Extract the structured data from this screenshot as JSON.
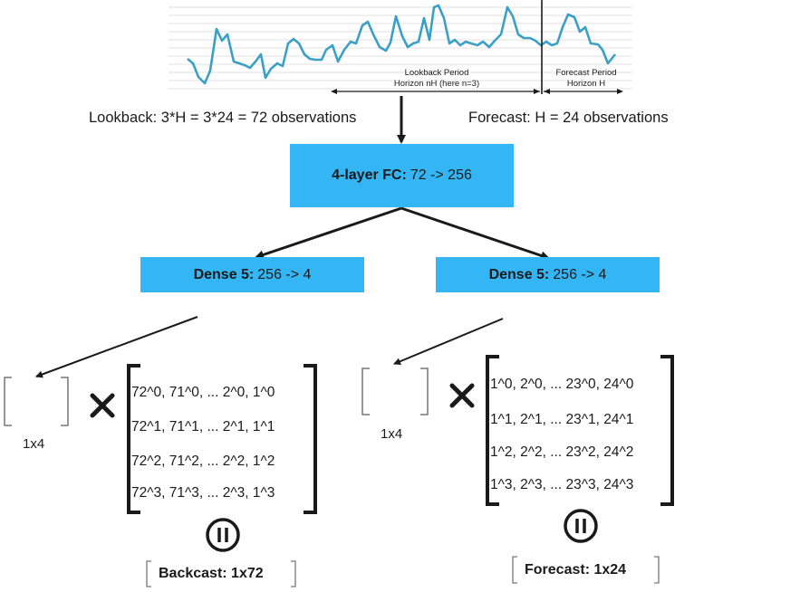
{
  "plot": {
    "lookback_line1": "Lookback Period",
    "lookback_line2": "Horizon nH (here n=3)",
    "forecast_line1": "Forecast Period",
    "forecast_line2": "Horizon H"
  },
  "labels": {
    "lookback": "Lookback: 3*H = 3*24 = 72 observations",
    "forecast": "Forecast: H = 24 observations"
  },
  "fc_block": {
    "title": "4-layer FC:",
    "dims": "72 -> 256"
  },
  "dense_left": {
    "title": "Dense 5:",
    "dims": "256 -> 4"
  },
  "dense_right": {
    "title": "Dense 5:",
    "dims": "256 -> 4"
  },
  "left": {
    "vector_label": "1x4",
    "matrix_rows": [
      "72^0,  71^0, ... 2^0, 1^0",
      "72^1,  71^1, ... 2^1, 1^1",
      "72^2,  71^2, ... 2^2, 1^2",
      "72^3,  71^3, ... 2^3, 1^3"
    ],
    "output": "Backcast: 1x72"
  },
  "right": {
    "vector_label": "1x4",
    "matrix_rows": [
      "1^0,  2^0, ... 23^0, 24^0",
      "1^1,  2^1, ... 23^1, 24^1",
      "1^2,  2^2, ... 23^2, 24^2",
      "1^3,  2^3, ... 23^3, 24^3"
    ],
    "output": "Forecast: 1x24"
  },
  "colors": {
    "block": "#35b6f4",
    "series": "#3aa0c8",
    "ink": "#1a1a1a"
  }
}
